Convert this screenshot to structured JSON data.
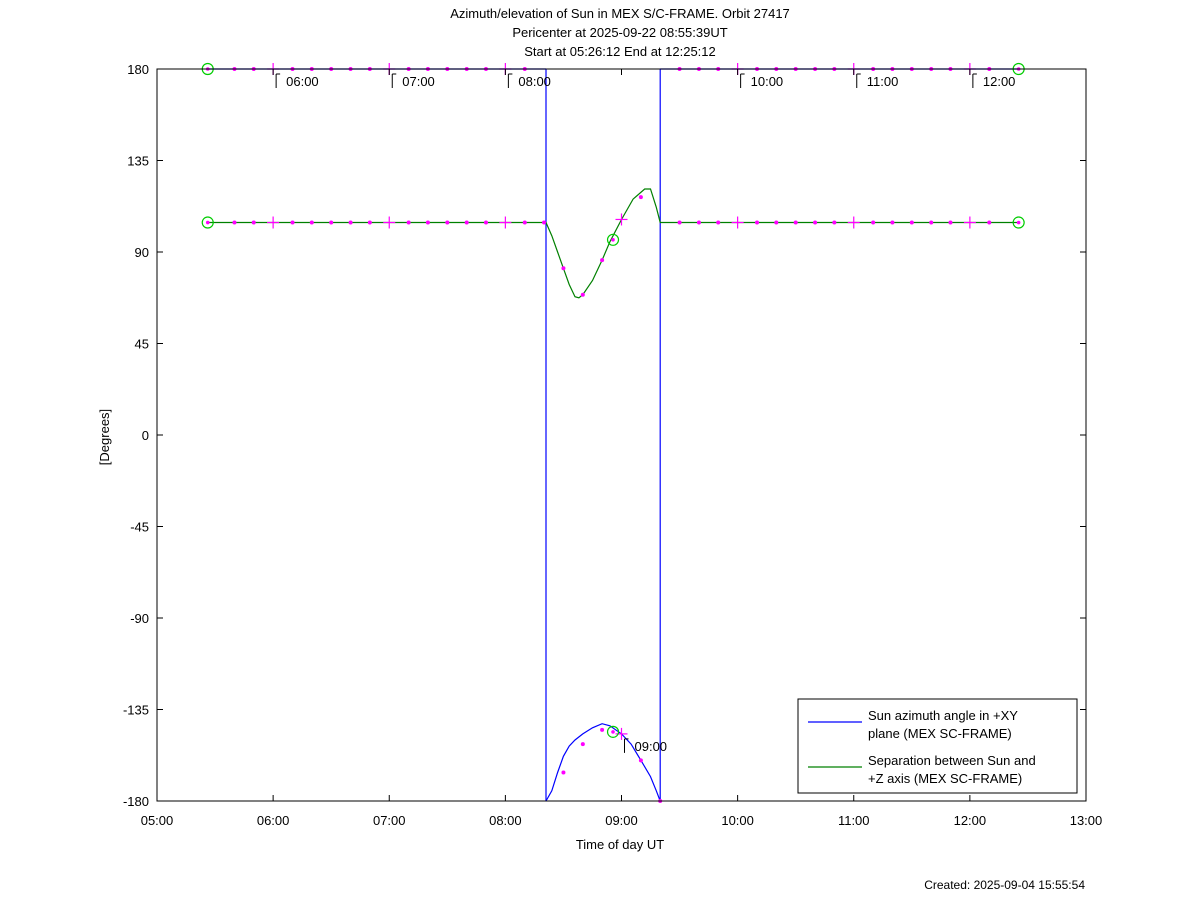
{
  "chart_data": {
    "type": "line",
    "title_lines": [
      "Azimuth/elevation of Sun in MEX S/C-FRAME.  Orbit 27417",
      "Pericenter at 2025-09-22 08:55:39UT",
      "Start at 05:26:12 End at 12:25:12"
    ],
    "xlabel": "Time of day UT",
    "ylabel": "[Degrees]",
    "xlim": [
      5.0,
      13.0
    ],
    "ylim": [
      -180,
      180
    ],
    "x_ticks": [
      {
        "value": 5,
        "label": "05:00"
      },
      {
        "value": 6,
        "label": "06:00"
      },
      {
        "value": 7,
        "label": "07:00"
      },
      {
        "value": 8,
        "label": "08:00"
      },
      {
        "value": 9,
        "label": "09:00"
      },
      {
        "value": 10,
        "label": "10:00"
      },
      {
        "value": 11,
        "label": "11:00"
      },
      {
        "value": 12,
        "label": "12:00"
      },
      {
        "value": 13,
        "label": "13:00"
      }
    ],
    "y_ticks": [
      {
        "value": 180,
        "label": "180"
      },
      {
        "value": 135,
        "label": "135"
      },
      {
        "value": 90,
        "label": "90"
      },
      {
        "value": 45,
        "label": "45"
      },
      {
        "value": 0,
        "label": "0"
      },
      {
        "value": -45,
        "label": "-45"
      },
      {
        "value": -90,
        "label": "-90"
      },
      {
        "value": -135,
        "label": "-135"
      },
      {
        "value": -180,
        "label": "-180"
      }
    ],
    "grid": false,
    "legend_position": "bottom-right",
    "series": [
      {
        "name": "Sun azimuth angle in +XY plane (MEX SC-FRAME)",
        "legend_lines": [
          "Sun azimuth angle in +XY",
          "plane (MEX SC-FRAME)"
        ],
        "color": "#0000ff",
        "segments": [
          [
            [
              5.437,
              180
            ],
            [
              8.35,
              180
            ]
          ],
          [
            [
              8.35,
              180
            ],
            [
              8.35,
              -180
            ]
          ],
          [
            [
              8.35,
              -180
            ],
            [
              8.4,
              -175
            ],
            [
              8.45,
              -166
            ],
            [
              8.5,
              -158
            ],
            [
              8.55,
              -153
            ],
            [
              8.6,
              -150
            ],
            [
              8.667,
              -147
            ],
            [
              8.75,
              -144
            ],
            [
              8.833,
              -142
            ],
            [
              8.9,
              -143
            ],
            [
              9.0,
              -147
            ],
            [
              9.083,
              -152
            ],
            [
              9.167,
              -160
            ],
            [
              9.25,
              -168
            ],
            [
              9.3,
              -175
            ],
            [
              9.333,
              -180
            ]
          ],
          [
            [
              9.333,
              -180
            ],
            [
              9.333,
              180
            ]
          ],
          [
            [
              9.333,
              180
            ],
            [
              12.42,
              180
            ]
          ]
        ]
      },
      {
        "name": "Separation between Sun and +Z axis (MEX SC-FRAME)",
        "legend_lines": [
          "Separation between Sun and",
          "+Z axis (MEX SC-FRAME)"
        ],
        "color": "#008000",
        "segments": [
          [
            [
              5.437,
              104.5
            ],
            [
              8.35,
              104.5
            ],
            [
              8.4,
              98
            ],
            [
              8.45,
              90
            ],
            [
              8.5,
              82
            ],
            [
              8.55,
              74
            ],
            [
              8.6,
              68
            ],
            [
              8.633,
              67.5
            ],
            [
              8.667,
              69
            ],
            [
              8.75,
              76
            ],
            [
              8.833,
              86
            ],
            [
              8.9,
              95
            ],
            [
              9.0,
              106
            ],
            [
              9.1,
              116
            ],
            [
              9.2,
              121
            ],
            [
              9.25,
              121
            ],
            [
              9.3,
              112
            ],
            [
              9.333,
              104.5
            ],
            [
              12.42,
              104.5
            ]
          ]
        ]
      }
    ],
    "time_labels": [
      {
        "x": 6,
        "y": 180,
        "label": "06:00"
      },
      {
        "x": 7,
        "y": 180,
        "label": "07:00"
      },
      {
        "x": 8,
        "y": 180,
        "label": "08:00"
      },
      {
        "x": 10,
        "y": 180,
        "label": "10:00"
      },
      {
        "x": 11,
        "y": 180,
        "label": "11:00"
      },
      {
        "x": 12,
        "y": 180,
        "label": "12:00"
      },
      {
        "x": 9,
        "y": -147,
        "label": "09:00"
      }
    ],
    "dot_markers": [
      [
        5.667,
        180
      ],
      [
        5.833,
        180
      ],
      [
        6.167,
        180
      ],
      [
        6.333,
        180
      ],
      [
        6.5,
        180
      ],
      [
        6.667,
        180
      ],
      [
        6.833,
        180
      ],
      [
        7.167,
        180
      ],
      [
        7.333,
        180
      ],
      [
        7.5,
        180
      ],
      [
        7.667,
        180
      ],
      [
        7.833,
        180
      ],
      [
        8.167,
        180
      ],
      [
        9.5,
        180
      ],
      [
        9.667,
        180
      ],
      [
        9.833,
        180
      ],
      [
        10.167,
        180
      ],
      [
        10.333,
        180
      ],
      [
        10.5,
        180
      ],
      [
        10.667,
        180
      ],
      [
        10.833,
        180
      ],
      [
        11.167,
        180
      ],
      [
        11.333,
        180
      ],
      [
        11.5,
        180
      ],
      [
        11.667,
        180
      ],
      [
        11.833,
        180
      ],
      [
        12.167,
        180
      ],
      [
        5.667,
        104.5
      ],
      [
        5.833,
        104.5
      ],
      [
        6.167,
        104.5
      ],
      [
        6.333,
        104.5
      ],
      [
        6.5,
        104.5
      ],
      [
        6.667,
        104.5
      ],
      [
        6.833,
        104.5
      ],
      [
        7.167,
        104.5
      ],
      [
        7.333,
        104.5
      ],
      [
        7.5,
        104.5
      ],
      [
        7.667,
        104.5
      ],
      [
        7.833,
        104.5
      ],
      [
        8.167,
        104.5
      ],
      [
        8.333,
        104.5
      ],
      [
        9.5,
        104.5
      ],
      [
        9.667,
        104.5
      ],
      [
        9.833,
        104.5
      ],
      [
        10.167,
        104.5
      ],
      [
        10.333,
        104.5
      ],
      [
        10.5,
        104.5
      ],
      [
        10.667,
        104.5
      ],
      [
        10.833,
        104.5
      ],
      [
        11.167,
        104.5
      ],
      [
        11.333,
        104.5
      ],
      [
        11.5,
        104.5
      ],
      [
        11.667,
        104.5
      ],
      [
        11.833,
        104.5
      ],
      [
        12.167,
        104.5
      ],
      [
        8.5,
        82
      ],
      [
        8.667,
        69
      ],
      [
        8.833,
        86
      ],
      [
        9.167,
        117
      ],
      [
        8.5,
        -166
      ],
      [
        8.667,
        -152
      ],
      [
        8.833,
        -145
      ],
      [
        9.167,
        -160
      ],
      [
        9.333,
        -180
      ]
    ],
    "plus_markers": [
      [
        6,
        180
      ],
      [
        7,
        180
      ],
      [
        8,
        180
      ],
      [
        10,
        180
      ],
      [
        11,
        180
      ],
      [
        12,
        180
      ],
      [
        6,
        104.5
      ],
      [
        7,
        104.5
      ],
      [
        8,
        104.5
      ],
      [
        10,
        104.5
      ],
      [
        11,
        104.5
      ],
      [
        12,
        104.5
      ],
      [
        9,
        106
      ],
      [
        9,
        -147
      ]
    ],
    "circle_markers": [
      [
        5.437,
        180
      ],
      [
        12.42,
        180
      ],
      [
        5.437,
        104.5
      ],
      [
        12.42,
        104.5
      ],
      [
        8.927,
        96
      ],
      [
        8.927,
        -146
      ]
    ],
    "footer": "Created: 2025-09-04 15:55:54"
  }
}
